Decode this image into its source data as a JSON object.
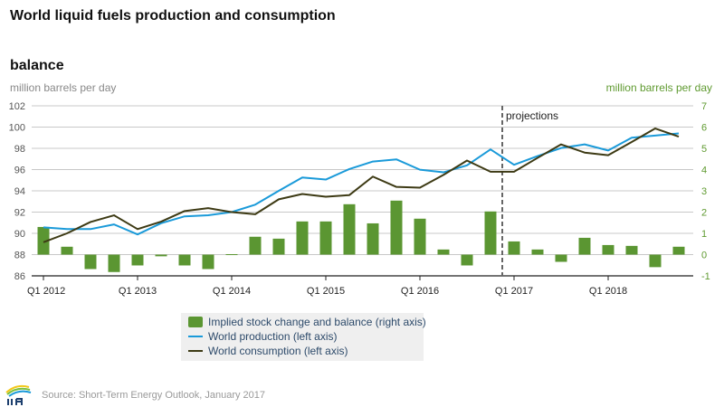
{
  "chart_data": {
    "type": "bar+line",
    "title": "World liquid fuels production and consumption",
    "subtitle": "balance",
    "ylabel_left": "million barrels per day",
    "ylabel_right": "million barrels per day",
    "ylim_left": [
      86,
      102
    ],
    "yticks_left": [
      "86",
      "88",
      "90",
      "92",
      "94",
      "96",
      "98",
      "100",
      "102"
    ],
    "ylim_right": [
      -1,
      7
    ],
    "yticks_right": [
      "-1",
      "0",
      "1",
      "2",
      "3",
      "4",
      "5",
      "6",
      "7"
    ],
    "grid": true,
    "x": [
      "Q1 2012",
      "Q2 2012",
      "Q3 2012",
      "Q4 2012",
      "Q1 2013",
      "Q2 2013",
      "Q3 2013",
      "Q4 2013",
      "Q1 2014",
      "Q2 2014",
      "Q3 2014",
      "Q4 2014",
      "Q1 2015",
      "Q2 2015",
      "Q3 2015",
      "Q4 2015",
      "Q1 2016",
      "Q2 2016",
      "Q3 2016",
      "Q4 2016",
      "Q1 2017",
      "Q2 2017",
      "Q3 2017",
      "Q4 2017",
      "Q1 2018",
      "Q2 2018",
      "Q3 2018",
      "Q4 2018"
    ],
    "xtick_labels": [
      "Q1 2012",
      "Q1 2013",
      "Q1 2014",
      "Q1 2015",
      "Q1 2016",
      "Q1 2017",
      "Q1 2018"
    ],
    "annotation": "projections",
    "projection_start": "Q1 2017",
    "series": [
      {
        "name": "Implied stock change and balance (right axis)",
        "type": "bar",
        "axis": "right",
        "color": "#5b9632",
        "values": [
          1.3,
          0.37,
          -0.68,
          -0.82,
          -0.51,
          -0.08,
          -0.51,
          -0.68,
          0.02,
          0.84,
          0.75,
          1.56,
          1.56,
          2.37,
          1.47,
          2.54,
          1.69,
          0.24,
          -0.51,
          2.03,
          0.62,
          0.24,
          -0.34,
          0.79,
          0.45,
          0.41,
          -0.59,
          0.37
        ]
      },
      {
        "name": "World production (left axis)",
        "type": "line",
        "axis": "left",
        "color": "#1a9ad9",
        "values": [
          90.56,
          90.4,
          90.4,
          90.84,
          89.9,
          90.95,
          91.6,
          91.7,
          92.0,
          92.7,
          94.0,
          95.26,
          95.06,
          96.05,
          96.76,
          96.96,
          95.99,
          95.74,
          96.4,
          97.9,
          96.45,
          97.27,
          98.03,
          98.37,
          97.8,
          99.0,
          99.2,
          99.4
        ]
      },
      {
        "name": "World consumption (left axis)",
        "type": "line",
        "axis": "left",
        "color": "#3d3a14",
        "values": [
          89.17,
          90.0,
          91.07,
          91.7,
          90.4,
          91.1,
          92.1,
          92.37,
          92.0,
          91.8,
          93.2,
          93.7,
          93.45,
          93.6,
          95.34,
          94.37,
          94.3,
          95.5,
          96.85,
          95.8,
          95.8,
          97.1,
          98.37,
          97.6,
          97.35,
          98.6,
          99.87,
          99.1
        ]
      }
    ],
    "legend_position": "bottom"
  },
  "source": "Source: Short-Term Energy Outlook, January 2017",
  "logo_text": "eia"
}
